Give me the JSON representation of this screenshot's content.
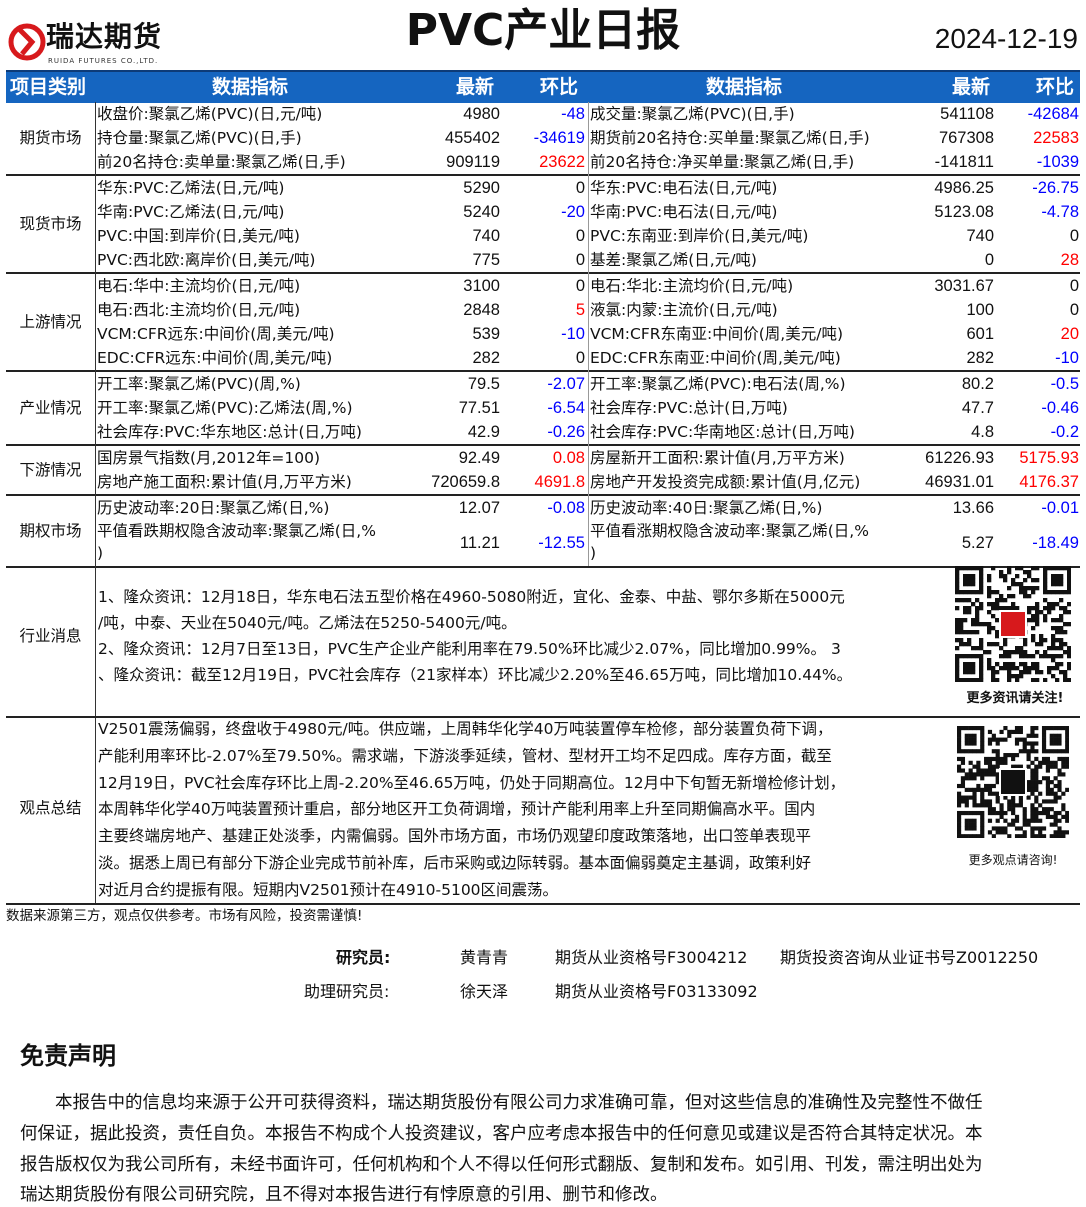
{
  "header": {
    "logo_text": "瑞达期货",
    "logo_sub": "RUIDA FUTURES CO.,LTD.",
    "title": "PVC产业日报",
    "date": "2024-12-19",
    "brand_color": "#d7191c"
  },
  "table": {
    "columns": {
      "category": "项目类别",
      "indicator": "数据指标",
      "latest": "最新",
      "change": "环比",
      "indicator2": "数据指标",
      "latest2": "最新",
      "change2": "环比"
    },
    "header_color": "#1565c0",
    "up_color": "#ff0000",
    "down_color": "#0000ff",
    "sections": [
      {
        "category": "期货市场",
        "rows": [
          {
            "left": {
              "name": "收盘价:聚氯乙烯(PVC)(日,元/吨)",
              "latest": "4980",
              "change": "-48"
            },
            "right": {
              "name": "成交量:聚氯乙烯(PVC)(日,手)",
              "latest": "541108",
              "change": "-42684"
            }
          },
          {
            "left": {
              "name": "持仓量:聚氯乙烯(PVC)(日,手)",
              "latest": "455402",
              "change": "-34619"
            },
            "right": {
              "name": "期货前20名持仓:买单量:聚氯乙烯(日,手)",
              "latest": "767308",
              "change": "22583"
            }
          },
          {
            "left": {
              "name": "前20名持仓:卖单量:聚氯乙烯(日,手)",
              "latest": "909119",
              "change": "23622"
            },
            "right": {
              "name": "前20名持仓:净买单量:聚氯乙烯(日,手)",
              "latest": "-141811",
              "change": "-1039"
            }
          }
        ]
      },
      {
        "category": "现货市场",
        "rows": [
          {
            "left": {
              "name": "华东:PVC:乙烯法(日,元/吨)",
              "latest": "5290",
              "change": "0"
            },
            "right": {
              "name": "华东:PVC:电石法(日,元/吨)",
              "latest": "4986.25",
              "change": "-26.75"
            }
          },
          {
            "left": {
              "name": "华南:PVC:乙烯法(日,元/吨)",
              "latest": "5240",
              "change": "-20"
            },
            "right": {
              "name": "华南:PVC:电石法(日,元/吨)",
              "latest": "5123.08",
              "change": "-4.78"
            }
          },
          {
            "left": {
              "name": "PVC:中国:到岸价(日,美元/吨)",
              "latest": "740",
              "change": "0"
            },
            "right": {
              "name": "PVC:东南亚:到岸价(日,美元/吨)",
              "latest": "740",
              "change": "0"
            }
          },
          {
            "left": {
              "name": "PVC:西北欧:离岸价(日,美元/吨)",
              "latest": "775",
              "change": "0"
            },
            "right": {
              "name": "基差:聚氯乙烯(日,元/吨)",
              "latest": "0",
              "change": "28"
            }
          }
        ]
      },
      {
        "category": "上游情况",
        "rows": [
          {
            "left": {
              "name": "电石:华中:主流均价(日,元/吨)",
              "latest": "3100",
              "change": "0"
            },
            "right": {
              "name": "电石:华北:主流均价(日,元/吨)",
              "latest": "3031.67",
              "change": "0"
            }
          },
          {
            "left": {
              "name": "电石:西北:主流均价(日,元/吨)",
              "latest": "2848",
              "change": "5"
            },
            "right": {
              "name": "液氯:内蒙:主流价(日,元/吨)",
              "latest": "100",
              "change": "0"
            }
          },
          {
            "left": {
              "name": "VCM:CFR远东:中间价(周,美元/吨)",
              "latest": "539",
              "change": "-10"
            },
            "right": {
              "name": "VCM:CFR东南亚:中间价(周,美元/吨)",
              "latest": "601",
              "change": "20"
            }
          },
          {
            "left": {
              "name": "EDC:CFR远东:中间价(周,美元/吨)",
              "latest": "282",
              "change": "0"
            },
            "right": {
              "name": "EDC:CFR东南亚:中间价(周,美元/吨)",
              "latest": "282",
              "change": "-10"
            }
          }
        ]
      },
      {
        "category": "产业情况",
        "rows": [
          {
            "left": {
              "name": "开工率:聚氯乙烯(PVC)(周,%)",
              "latest": "79.5",
              "change": "-2.07"
            },
            "right": {
              "name": "开工率:聚氯乙烯(PVC):电石法(周,%)",
              "latest": "80.2",
              "change": "-0.5"
            }
          },
          {
            "left": {
              "name": "开工率:聚氯乙烯(PVC):乙烯法(周,%)",
              "latest": "77.51",
              "change": "-6.54"
            },
            "right": {
              "name": "社会库存:PVC:总计(日,万吨)",
              "latest": "47.7",
              "change": "-0.46"
            }
          },
          {
            "left": {
              "name": "社会库存:PVC:华东地区:总计(日,万吨)",
              "latest": "42.9",
              "change": "-0.26"
            },
            "right": {
              "name": "社会库存:PVC:华南地区:总计(日,万吨)",
              "latest": "4.8",
              "change": "-0.2"
            }
          }
        ]
      },
      {
        "category": "下游情况",
        "rows": [
          {
            "left": {
              "name": "国房景气指数(月,2012年=100)",
              "latest": "92.49",
              "change": "0.08"
            },
            "right": {
              "name": "房屋新开工面积:累计值(月,万平方米)",
              "latest": "61226.93",
              "change": "5175.93"
            }
          },
          {
            "left": {
              "name": "房地产施工面积:累计值(月,万平方米)",
              "latest": "720659.8",
              "change": "4691.8"
            },
            "right": {
              "name": "房地产开发投资完成额:累计值(月,亿元)",
              "latest": "46931.01",
              "change": "4176.37"
            }
          }
        ]
      },
      {
        "category": "期权市场",
        "rows": [
          {
            "left": {
              "name": "历史波动率:20日:聚氯乙烯(日,%)",
              "latest": "12.07",
              "change": "-0.08"
            },
            "right": {
              "name": "历史波动率:40日:聚氯乙烯(日,%)",
              "latest": "13.66",
              "change": "-0.01"
            }
          },
          {
            "left": {
              "name": "平值看跌期权隐含波动率:聚氯乙烯(日,%\n)",
              "latest": "11.21",
              "change": "-12.55"
            },
            "right": {
              "name": "平值看涨期权隐含波动率:聚氯乙烯(日,%\n)",
              "latest": "5.27",
              "change": "-18.49"
            }
          }
        ]
      }
    ]
  },
  "news": {
    "category": "行业消息",
    "lines": [
      "1、隆众资讯：12月18日，华东电石法五型价格在4960-5080附近，宜化、金泰、中盐、鄂尔多斯在5000元",
      "/吨，中泰、天业在5040元/吨。乙烯法在5250-5400元/吨。",
      "2、隆众资讯：12月7日至13日，PVC生产企业产能利用率在79.50%环比减少2.07%，同比增加0.99%。 3",
      "、隆众资讯：截至12月19日，PVC社会库存（21家样本）环比减少2.20%至46.65万吨，同比增加10.44%。"
    ],
    "qr_caption": "更多资讯请关注!"
  },
  "summary": {
    "category": "观点总结",
    "lines": [
      "V2501震荡偏弱，终盘收于4980元/吨。供应端，上周韩华化学40万吨装置停车检修，部分装置负荷下调，",
      "产能利用率环比-2.07%至79.50%。需求端，下游淡季延续，管材、型材开工均不足四成。库存方面，截至",
      "12月19日，PVC社会库存环比上周-2.20%至46.65万吨，仍处于同期高位。12月中下旬暂无新增检修计划，",
      "本周韩华化学40万吨装置预计重启，部分地区开工负荷调增，预计产能利用率上升至同期偏高水平。国内",
      "主要终端房地产、基建正处淡季，内需偏弱。国外市场方面，市场仍观望印度政策落地，出口签单表现平",
      "淡。据悉上周已有部分下游企业完成节前补库，后市采购或边际转弱。基本面偏弱奠定主基调，政策利好",
      "对近月合约提振有限。短期内V2501预计在4910-5100区间震荡。"
    ],
    "qr_caption": "更多观点请咨询!"
  },
  "footer": {
    "note": "数据来源第三方，观点仅供参考。市场有风险，投资需谨慎!",
    "researcher_label": "研究员:",
    "researcher_name": "黄青青",
    "researcher_cert1": "期货从业资格号F3004212",
    "researcher_cert2": "期货投资咨询从业证书号Z0012250",
    "assistant_label": "助理研究员:",
    "assistant_name": "徐天泽",
    "assistant_cert": "期货从业资格号F03133092"
  },
  "disclaimer": {
    "title": "免责声明",
    "lines": [
      "本报告中的信息均来源于公开可获得资料，瑞达期货股份有限公司力求准确可靠，但对这些信息的准确性及完整性不做任",
      "何保证，据此投资，责任自负。本报告不构成个人投资建议，客户应考虑本报告中的任何意见或建议是否符合其特定状况。本",
      "报告版权仅为我公司所有，未经书面许可，任何机构和个人不得以任何形式翻版、复制和发布。如引用、刊发，需注明出处为",
      "瑞达期货股份有限公司研究院，且不得对本报告进行有悖原意的引用、删节和修改。"
    ]
  }
}
